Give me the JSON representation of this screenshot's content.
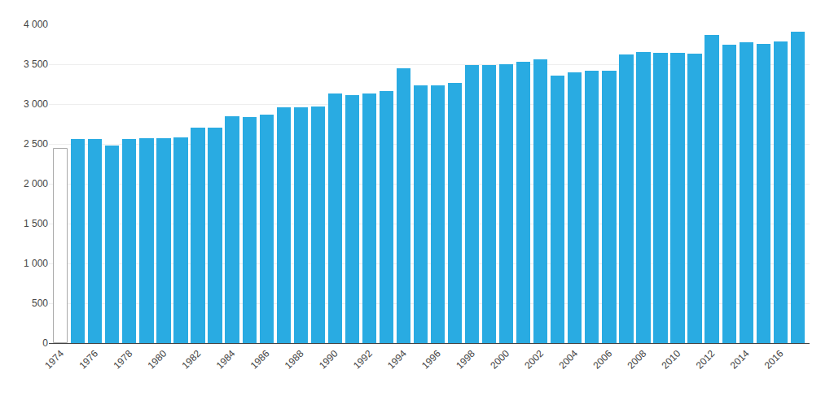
{
  "chart_data": {
    "type": "bar",
    "x": [
      1974,
      1975,
      1976,
      1977,
      1978,
      1979,
      1980,
      1981,
      1982,
      1983,
      1984,
      1985,
      1986,
      1987,
      1988,
      1989,
      1990,
      1991,
      1992,
      1993,
      1994,
      1995,
      1996,
      1997,
      1998,
      1999,
      2000,
      2001,
      2002,
      2003,
      2004,
      2005,
      2006,
      2007,
      2008,
      2009,
      2010,
      2011,
      2012,
      2013,
      2014,
      2015,
      2016,
      2017
    ],
    "values": [
      2440,
      2560,
      2560,
      2480,
      2560,
      2570,
      2575,
      2580,
      2700,
      2700,
      2850,
      2840,
      2870,
      2960,
      2960,
      2970,
      3130,
      3110,
      3130,
      3160,
      3450,
      3230,
      3230,
      3270,
      3490,
      3490,
      3500,
      3530,
      3560,
      3360,
      3400,
      3420,
      3420,
      3620,
      3650,
      3640,
      3640,
      3630,
      3870,
      3740,
      3780,
      3760,
      3790,
      3910
    ],
    "colors": [
      "#FFFFFF",
      "#29ABE2",
      "#29ABE2",
      "#29ABE2",
      "#29ABE2",
      "#29ABE2",
      "#29ABE2",
      "#29ABE2",
      "#29ABE2",
      "#29ABE2",
      "#29ABE2",
      "#29ABE2",
      "#29ABE2",
      "#29ABE2",
      "#29ABE2",
      "#29ABE2",
      "#29ABE2",
      "#29ABE2",
      "#29ABE2",
      "#29ABE2",
      "#29ABE2",
      "#29ABE2",
      "#29ABE2",
      "#29ABE2",
      "#29ABE2",
      "#29ABE2",
      "#29ABE2",
      "#29ABE2",
      "#29ABE2",
      "#29ABE2",
      "#29ABE2",
      "#29ABE2",
      "#29ABE2",
      "#29ABE2",
      "#29ABE2",
      "#29ABE2",
      "#29ABE2",
      "#29ABE2",
      "#29ABE2",
      "#29ABE2",
      "#29ABE2",
      "#29ABE2",
      "#29ABE2",
      "#29ABE2"
    ],
    "xlim": [
      1973.3,
      2017.7
    ],
    "xticks": [
      1974,
      1976,
      1978,
      1980,
      1982,
      1984,
      1986,
      1988,
      1990,
      1992,
      1994,
      1996,
      1998,
      2000,
      2002,
      2004,
      2006,
      2008,
      2010,
      2012,
      2014,
      2016
    ],
    "ylim": [
      0,
      4000
    ],
    "yticks": [
      0,
      500,
      {
        "value": 1000,
        "label": "1 000"
      },
      {
        "value": 1500,
        "label": "1 500"
      },
      {
        "value": 2000,
        "label": "2 000"
      },
      {
        "value": 2500,
        "label": "2 500"
      },
      {
        "value": 3000,
        "label": "3 000"
      },
      {
        "value": 3500,
        "label": "3 500"
      },
      {
        "value": 4000,
        "label": "4 000"
      }
    ],
    "grid": true
  }
}
